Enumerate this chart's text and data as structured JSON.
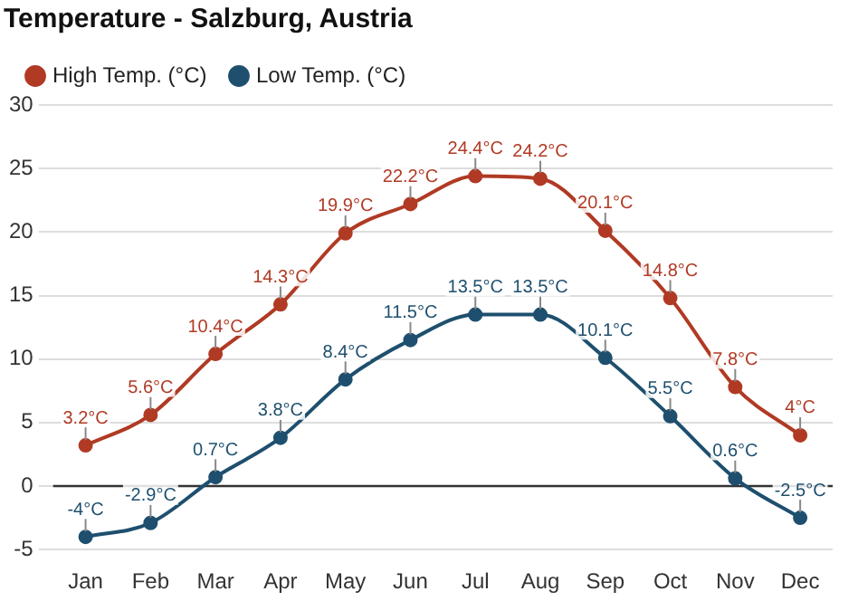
{
  "chart_data": {
    "type": "line",
    "title": "Temperature - Salzburg, Austria",
    "categories": [
      "Jan",
      "Feb",
      "Mar",
      "Apr",
      "May",
      "Jun",
      "Jul",
      "Aug",
      "Sep",
      "Oct",
      "Nov",
      "Dec"
    ],
    "series": [
      {
        "name": "High Temp. (°C)",
        "color": "#b03a24",
        "values": [
          3.2,
          5.6,
          10.4,
          14.3,
          19.9,
          22.2,
          24.4,
          24.2,
          20.1,
          14.8,
          7.8,
          4
        ],
        "value_labels": [
          "3.2°C",
          "5.6°C",
          "10.4°C",
          "14.3°C",
          "19.9°C",
          "22.2°C",
          "24.4°C",
          "24.2°C",
          "20.1°C",
          "14.8°C",
          "7.8°C",
          "4°C"
        ]
      },
      {
        "name": "Low Temp. (°C)",
        "color": "#1e4f6e",
        "values": [
          -4,
          -2.9,
          0.7,
          3.8,
          8.4,
          11.5,
          13.5,
          13.5,
          10.1,
          5.5,
          0.6,
          -2.5
        ],
        "value_labels": [
          "-4°C",
          "-2.9°C",
          "0.7°C",
          "3.8°C",
          "8.4°C",
          "11.5°C",
          "13.5°C",
          "13.5°C",
          "10.1°C",
          "5.5°C",
          "0.6°C",
          "-2.5°C"
        ]
      }
    ],
    "ylim": [
      -5,
      30
    ],
    "yticks": [
      -5,
      0,
      5,
      10,
      15,
      20,
      25,
      30
    ],
    "grid": "y",
    "legend": "top left",
    "marker": "circle",
    "line_style": "solid",
    "ref_lines": [
      {
        "axis": "y",
        "value": 0,
        "color": "#333333"
      }
    ]
  }
}
